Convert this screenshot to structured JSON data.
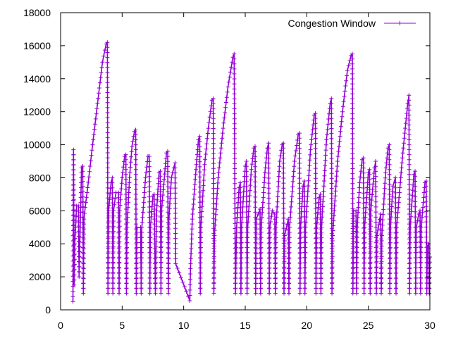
{
  "chart_data": {
    "type": "line",
    "title": "",
    "xlabel": "",
    "ylabel": "",
    "xlim": [
      0,
      30
    ],
    "ylim": [
      0,
      18000
    ],
    "x_ticks": [
      0,
      5,
      10,
      15,
      20,
      25,
      30
    ],
    "y_ticks": [
      0,
      2000,
      4000,
      6000,
      8000,
      10000,
      12000,
      14000,
      16000,
      18000
    ],
    "grid": false,
    "legend_position": "top-right",
    "marker": "plus",
    "series": [
      {
        "name": "Congestion Window",
        "color": "#9400d3",
        "points": [
          [
            1.0,
            500
          ],
          [
            1.05,
            9700
          ],
          [
            1.1,
            1500
          ],
          [
            1.15,
            4000
          ],
          [
            1.3,
            6300
          ],
          [
            1.45,
            6300
          ],
          [
            1.5,
            2000
          ],
          [
            1.7,
            8600
          ],
          [
            1.8,
            8700
          ],
          [
            1.85,
            1000
          ],
          [
            1.9,
            5500
          ],
          [
            2.0,
            6200
          ],
          [
            2.2,
            7400
          ],
          [
            2.6,
            10000
          ],
          [
            3.0,
            12500
          ],
          [
            3.4,
            15000
          ],
          [
            3.7,
            16100
          ],
          [
            3.8,
            16200
          ],
          [
            3.85,
            1000
          ],
          [
            3.9,
            6000
          ],
          [
            4.1,
            7700
          ],
          [
            4.2,
            8000
          ],
          [
            4.25,
            1000
          ],
          [
            4.3,
            6000
          ],
          [
            4.5,
            7100
          ],
          [
            4.7,
            7100
          ],
          [
            4.75,
            1000
          ],
          [
            4.8,
            6000
          ],
          [
            5.0,
            8000
          ],
          [
            5.2,
            9300
          ],
          [
            5.3,
            9400
          ],
          [
            5.35,
            1000
          ],
          [
            5.4,
            5000
          ],
          [
            5.6,
            8000
          ],
          [
            5.8,
            9900
          ],
          [
            6.0,
            10800
          ],
          [
            6.1,
            10900
          ],
          [
            6.15,
            1000
          ],
          [
            6.2,
            5000
          ],
          [
            6.5,
            5000
          ],
          [
            6.55,
            1000
          ],
          [
            6.6,
            5000
          ],
          [
            6.9,
            8000
          ],
          [
            7.1,
            9300
          ],
          [
            7.2,
            9300
          ],
          [
            7.25,
            1000
          ],
          [
            7.3,
            5000
          ],
          [
            7.5,
            6900
          ],
          [
            7.6,
            7000
          ],
          [
            7.7,
            1000
          ],
          [
            7.8,
            6000
          ],
          [
            8.0,
            8300
          ],
          [
            8.1,
            8400
          ],
          [
            8.15,
            1000
          ],
          [
            8.2,
            6000
          ],
          [
            8.6,
            9500
          ],
          [
            8.7,
            9600
          ],
          [
            8.75,
            1000
          ],
          [
            8.8,
            5500
          ],
          [
            9.0,
            8000
          ],
          [
            9.3,
            8900
          ],
          [
            9.35,
            2800
          ],
          [
            10.5,
            550
          ],
          [
            10.55,
            2500
          ],
          [
            10.7,
            5500
          ],
          [
            11.0,
            8500
          ],
          [
            11.2,
            10300
          ],
          [
            11.3,
            10500
          ],
          [
            11.35,
            1000
          ],
          [
            11.4,
            5000
          ],
          [
            11.7,
            8800
          ],
          [
            12.0,
            11000
          ],
          [
            12.3,
            12700
          ],
          [
            12.4,
            12800
          ],
          [
            12.45,
            1000
          ],
          [
            12.5,
            4500
          ],
          [
            12.8,
            8000
          ],
          [
            13.2,
            11000
          ],
          [
            13.6,
            13500
          ],
          [
            14.0,
            15300
          ],
          [
            14.1,
            15500
          ],
          [
            14.2,
            1000
          ],
          [
            14.3,
            5000
          ],
          [
            14.5,
            7400
          ],
          [
            14.6,
            7700
          ],
          [
            14.65,
            1000
          ],
          [
            14.7,
            5000
          ],
          [
            15.0,
            8700
          ],
          [
            15.1,
            9000
          ],
          [
            15.15,
            1000
          ],
          [
            15.2,
            5000
          ],
          [
            15.5,
            8500
          ],
          [
            15.7,
            9800
          ],
          [
            15.8,
            9900
          ],
          [
            15.85,
            1000
          ],
          [
            15.9,
            5500
          ],
          [
            16.2,
            6100
          ],
          [
            16.25,
            1000
          ],
          [
            16.3,
            5000
          ],
          [
            16.6,
            8300
          ],
          [
            16.8,
            9800
          ],
          [
            16.9,
            10100
          ],
          [
            16.95,
            1000
          ],
          [
            17.0,
            5000
          ],
          [
            17.2,
            6000
          ],
          [
            17.4,
            5800
          ],
          [
            17.45,
            1000
          ],
          [
            17.5,
            5000
          ],
          [
            17.8,
            9000
          ],
          [
            18.0,
            10000
          ],
          [
            18.1,
            10100
          ],
          [
            18.15,
            1000
          ],
          [
            18.2,
            4500
          ],
          [
            18.5,
            5500
          ],
          [
            18.55,
            1000
          ],
          [
            18.6,
            5000
          ],
          [
            19.0,
            9000
          ],
          [
            19.3,
            10600
          ],
          [
            19.4,
            10700
          ],
          [
            19.45,
            1000
          ],
          [
            19.5,
            5000
          ],
          [
            19.7,
            7500
          ],
          [
            19.8,
            7800
          ],
          [
            19.85,
            1000
          ],
          [
            19.9,
            5000
          ],
          [
            20.3,
            9700
          ],
          [
            20.6,
            11800
          ],
          [
            20.7,
            11900
          ],
          [
            20.75,
            1000
          ],
          [
            20.8,
            5000
          ],
          [
            21.0,
            6800
          ],
          [
            21.1,
            7000
          ],
          [
            21.15,
            1000
          ],
          [
            21.2,
            5000
          ],
          [
            21.6,
            10300
          ],
          [
            21.9,
            12500
          ],
          [
            22.0,
            12800
          ],
          [
            22.05,
            1000
          ],
          [
            22.1,
            4500
          ],
          [
            22.5,
            9000
          ],
          [
            22.9,
            12000
          ],
          [
            23.3,
            14500
          ],
          [
            23.6,
            15400
          ],
          [
            23.7,
            15500
          ],
          [
            23.75,
            1000
          ],
          [
            23.8,
            6000
          ],
          [
            24.0,
            6000
          ],
          [
            24.05,
            1000
          ],
          [
            24.1,
            5000
          ],
          [
            24.3,
            7700
          ],
          [
            24.5,
            9100
          ],
          [
            24.6,
            9200
          ],
          [
            24.65,
            1000
          ],
          [
            24.7,
            5000
          ],
          [
            25.0,
            8300
          ],
          [
            25.1,
            8500
          ],
          [
            25.15,
            1000
          ],
          [
            25.2,
            6000
          ],
          [
            25.5,
            8600
          ],
          [
            25.6,
            9000
          ],
          [
            25.65,
            1000
          ],
          [
            25.7,
            4500
          ],
          [
            26.0,
            5800
          ],
          [
            26.05,
            1000
          ],
          [
            26.1,
            4500
          ],
          [
            26.4,
            8300
          ],
          [
            26.6,
            9800
          ],
          [
            26.7,
            10000
          ],
          [
            26.75,
            1000
          ],
          [
            26.8,
            5000
          ],
          [
            27.0,
            7500
          ],
          [
            27.2,
            8000
          ],
          [
            27.25,
            1000
          ],
          [
            27.3,
            5000
          ],
          [
            27.8,
            9500
          ],
          [
            28.2,
            12500
          ],
          [
            28.3,
            13000
          ],
          [
            28.35,
            1000
          ],
          [
            28.4,
            5000
          ],
          [
            28.7,
            8200
          ],
          [
            28.8,
            8400
          ],
          [
            28.85,
            1000
          ],
          [
            28.9,
            5000
          ],
          [
            29.1,
            5800
          ],
          [
            29.2,
            6000
          ],
          [
            29.25,
            1000
          ],
          [
            29.3,
            5000
          ],
          [
            29.6,
            7700
          ],
          [
            29.7,
            7800
          ],
          [
            29.75,
            1000
          ],
          [
            29.8,
            3800
          ],
          [
            29.9,
            4000
          ],
          [
            29.95,
            1000
          ],
          [
            30.0,
            3200
          ]
        ]
      }
    ]
  }
}
